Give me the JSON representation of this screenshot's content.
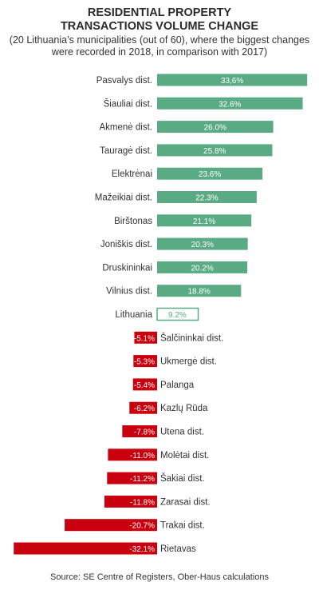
{
  "chart_data": {
    "type": "bar",
    "orientation": "horizontal",
    "title_lines": [
      "RESIDENTIAL PROPERTY",
      "TRANSACTIONS VOLUME CHANGE"
    ],
    "subtitle_lines": [
      "(20 Lithuania’s municipalities (out of 60), where the biggest changes",
      "were recorded in 2018, in comparison with 2017)"
    ],
    "categories": [
      "Pasvalys dist.",
      "Šiauliai dist.",
      "Akmenė dist.",
      "Tauragė dist.",
      "Elektrėnai",
      "Mažeikiai dist.",
      "Birštonas",
      "Joniškis dist.",
      "Druskininkai",
      "Vilnius dist.",
      "Lithuania",
      "Šalčininkai dist.",
      "Ukmergė dist.",
      "Palanga",
      "Kazlų Rūda",
      "Utena dist.",
      "Molėtai dist.",
      "Šakiai dist.",
      "Zarasai dist.",
      "Trakai dist.",
      "Rietavas"
    ],
    "values": [
      33.6,
      32.6,
      26.0,
      25.8,
      23.6,
      22.3,
      21.1,
      20.3,
      20.2,
      18.8,
      9.2,
      -5.1,
      -5.3,
      -5.4,
      -6.2,
      -7.8,
      -11.0,
      -11.2,
      -11.8,
      -20.7,
      -32.1
    ],
    "value_labels": [
      "33,6%",
      "32.6%",
      "26.0%",
      "25.8%",
      "23.6%",
      "22.3%",
      "21.1%",
      "20.3%",
      "20.2%",
      "18.8%",
      "9.2%",
      "-5.1%",
      "-5.3%",
      "-5.4%",
      "-6.2%",
      "-7.8%",
      "-11.0%",
      "-11.2%",
      "-11.8%",
      "-20.7%",
      "-32.1%"
    ],
    "highlight_category": "Lithuania",
    "colors": {
      "positive": "#5aab84",
      "negative": "#c9000e",
      "highlight_border": "#5aab84",
      "highlight_text": "#5aab84"
    },
    "source": "Source: SE Centre of Registers, Ober-Haus calculations"
  }
}
